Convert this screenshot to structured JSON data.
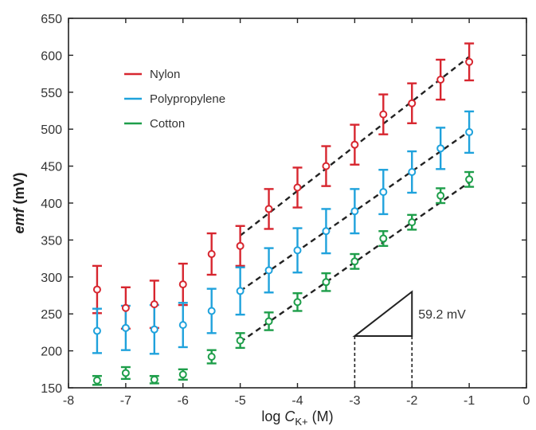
{
  "chart_data": {
    "type": "scatter",
    "xlabel": {
      "prefix": "log ",
      "var": "C",
      "sub": "K+",
      "suffix": " (M)"
    },
    "ylabel": {
      "italic": "emf",
      "rest": " (mV)"
    },
    "xlim": [
      -8,
      0
    ],
    "ylim": [
      150,
      650
    ],
    "xticks": [
      -8,
      -7,
      -6,
      -5,
      -4,
      -3,
      -2,
      -1,
      0
    ],
    "yticks": [
      150,
      200,
      250,
      300,
      350,
      400,
      450,
      500,
      550,
      600,
      650
    ],
    "legend_position": "top-left",
    "grid": false,
    "series": [
      {
        "name": "Nylon",
        "color": "#d7262f",
        "x": [
          -7.5,
          -7,
          -6.5,
          -6,
          -5.5,
          -5,
          -4.5,
          -4,
          -3.5,
          -3,
          -2.5,
          -2,
          -1.5,
          -1
        ],
        "y": [
          283,
          258,
          263,
          290,
          331,
          342,
          392,
          421,
          450,
          479,
          520,
          535,
          567,
          591
        ],
        "err": [
          32,
          28,
          32,
          28,
          28,
          27,
          27,
          27,
          27,
          27,
          27,
          27,
          27,
          25
        ],
        "fit": {
          "x": [
            -5,
            -1
          ],
          "y": [
            356,
            598
          ]
        }
      },
      {
        "name": "Polypropylene",
        "color": "#1fa2dc",
        "x": [
          -7.5,
          -7,
          -6.5,
          -6,
          -5.5,
          -5,
          -4.5,
          -4,
          -3.5,
          -3,
          -2.5,
          -2,
          -1.5,
          -1
        ],
        "y": [
          227,
          231,
          229,
          235,
          254,
          281,
          309,
          336,
          362,
          389,
          415,
          442,
          474,
          496
        ],
        "err": [
          30,
          30,
          33,
          30,
          30,
          32,
          30,
          30,
          30,
          30,
          30,
          28,
          28,
          28
        ],
        "fit": {
          "x": [
            -5,
            -1
          ],
          "y": [
            281,
            497
          ]
        }
      },
      {
        "name": "Cotton",
        "color": "#1e9e4a",
        "x": [
          -7.5,
          -7,
          -6.5,
          -6,
          -5.5,
          -5,
          -4.5,
          -4,
          -3.5,
          -3,
          -2.5,
          -2,
          -1.5,
          -1
        ],
        "y": [
          160,
          170,
          161,
          168,
          192,
          214,
          240,
          266,
          293,
          321,
          352,
          374,
          410,
          432
        ],
        "err": [
          6,
          8,
          5,
          7,
          9,
          10,
          12,
          12,
          12,
          10,
          10,
          10,
          10,
          10
        ],
        "fit": {
          "x": [
            -5,
            -1
          ],
          "y": [
            212,
            428
          ]
        }
      }
    ],
    "annotation": {
      "label": "59.2 mV",
      "triangle": {
        "x1": -3,
        "x2": -2,
        "y_low": 220,
        "y_high": 280
      }
    }
  }
}
